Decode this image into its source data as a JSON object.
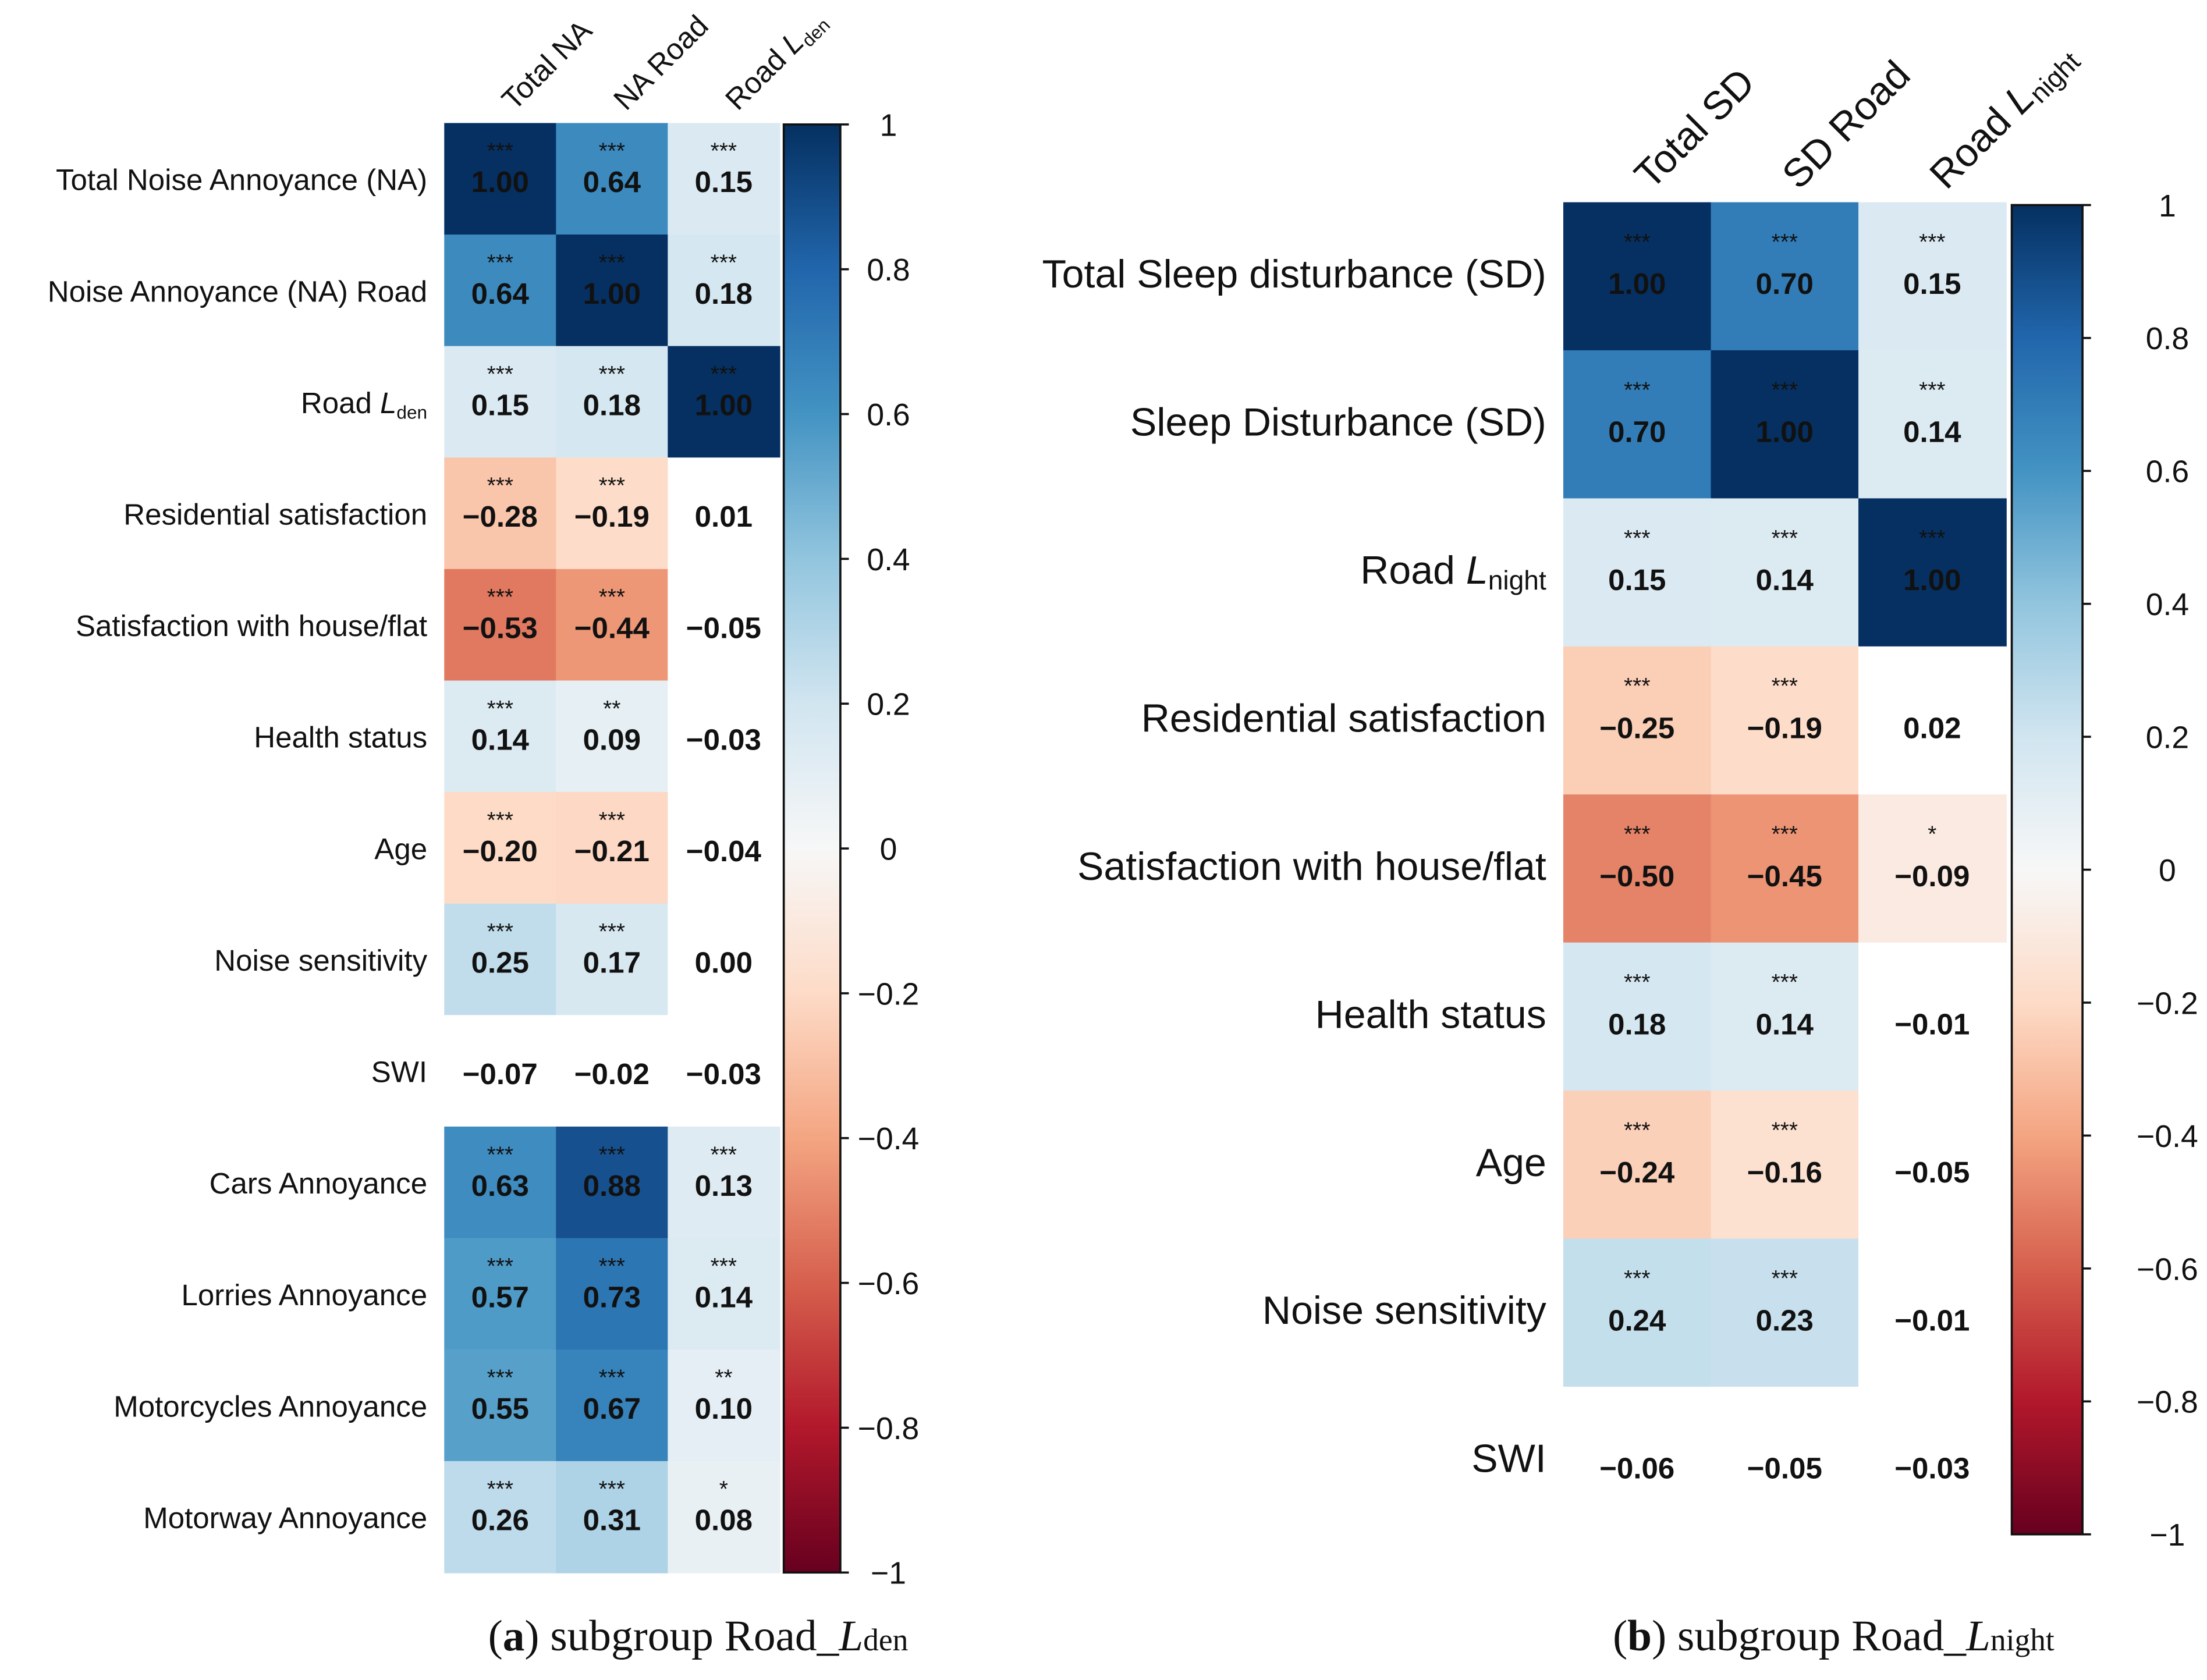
{
  "chart_data": [
    {
      "type": "heatmap",
      "caption": {
        "label": "a",
        "text": " subgroup Road_",
        "italic": "L",
        "sub": "den"
      },
      "columns": [
        {
          "text": "Total NA"
        },
        {
          "text": "NA Road"
        },
        {
          "text": "Road ",
          "italic": "L",
          "sub": "den"
        }
      ],
      "rows": [
        {
          "label": {
            "text": "Total Noise Annoyance (NA)"
          },
          "values": [
            1.0,
            0.64,
            0.15
          ],
          "stars": [
            "***",
            "***",
            "***"
          ]
        },
        {
          "label": {
            "text": "Noise Annoyance (NA) Road"
          },
          "values": [
            0.64,
            1.0,
            0.18
          ],
          "stars": [
            "***",
            "***",
            "***"
          ]
        },
        {
          "label": {
            "text": "Road ",
            "italic": "L",
            "sub": "den"
          },
          "values": [
            0.15,
            0.18,
            1.0
          ],
          "stars": [
            "***",
            "***",
            "***"
          ]
        },
        {
          "label": {
            "text": "Residential satisfaction"
          },
          "values": [
            -0.28,
            -0.19,
            0.01
          ],
          "stars": [
            "***",
            "***",
            ""
          ]
        },
        {
          "label": {
            "text": "Satisfaction with house/flat"
          },
          "values": [
            -0.53,
            -0.44,
            -0.05
          ],
          "stars": [
            "***",
            "***",
            ""
          ]
        },
        {
          "label": {
            "text": "Health status"
          },
          "values": [
            0.14,
            0.09,
            -0.03
          ],
          "stars": [
            "***",
            "**",
            ""
          ]
        },
        {
          "label": {
            "text": "Age"
          },
          "values": [
            -0.2,
            -0.21,
            -0.04
          ],
          "stars": [
            "***",
            "***",
            ""
          ]
        },
        {
          "label": {
            "text": "Noise sensitivity"
          },
          "values": [
            0.25,
            0.17,
            0.0
          ],
          "stars": [
            "***",
            "***",
            ""
          ]
        },
        {
          "label": {
            "text": "SWI"
          },
          "values": [
            -0.07,
            -0.02,
            -0.03
          ],
          "stars": [
            "",
            "",
            ""
          ]
        },
        {
          "label": {
            "text": "Cars Annoyance"
          },
          "values": [
            0.63,
            0.88,
            0.13
          ],
          "stars": [
            "***",
            "***",
            "***"
          ]
        },
        {
          "label": {
            "text": "Lorries Annoyance"
          },
          "values": [
            0.57,
            0.73,
            0.14
          ],
          "stars": [
            "***",
            "***",
            "***"
          ]
        },
        {
          "label": {
            "text": "Motorcycles Annoyance"
          },
          "values": [
            0.55,
            0.67,
            0.1
          ],
          "stars": [
            "***",
            "***",
            "**"
          ]
        },
        {
          "label": {
            "text": "Motorway Annoyance"
          },
          "values": [
            0.26,
            0.31,
            0.08
          ],
          "stars": [
            "***",
            "***",
            "*"
          ]
        }
      ],
      "colorbar": {
        "range": [
          -1,
          1
        ],
        "ticks": [
          "1",
          "0.8",
          "0.6",
          "0.4",
          "0.2",
          "0",
          "−0.2",
          "−0.4",
          "−0.6",
          "−0.8",
          "−1"
        ],
        "colormap": "RdBu"
      }
    },
    {
      "type": "heatmap",
      "caption": {
        "label": "b",
        "text": " subgroup Road_",
        "italic": "L",
        "sub": "night"
      },
      "columns": [
        {
          "text": "Total SD"
        },
        {
          "text": "SD Road"
        },
        {
          "text": "Road ",
          "italic": "L",
          "sub": "night"
        }
      ],
      "rows": [
        {
          "label": {
            "text": "Total Sleep disturbance (SD)"
          },
          "values": [
            1.0,
            0.7,
            0.15
          ],
          "stars": [
            "***",
            "***",
            "***"
          ]
        },
        {
          "label": {
            "text": "Sleep Disturbance (SD)"
          },
          "values": [
            0.7,
            1.0,
            0.14
          ],
          "stars": [
            "***",
            "***",
            "***"
          ]
        },
        {
          "label": {
            "text": "Road ",
            "italic": "L",
            "sub": "night"
          },
          "values": [
            0.15,
            0.14,
            1.0
          ],
          "stars": [
            "***",
            "***",
            "***"
          ]
        },
        {
          "label": {
            "text": "Residential satisfaction"
          },
          "values": [
            -0.25,
            -0.19,
            0.02
          ],
          "stars": [
            "***",
            "***",
            ""
          ]
        },
        {
          "label": {
            "text": "Satisfaction with house/flat"
          },
          "values": [
            -0.5,
            -0.45,
            -0.09
          ],
          "stars": [
            "***",
            "***",
            "*"
          ]
        },
        {
          "label": {
            "text": "Health status"
          },
          "values": [
            0.18,
            0.14,
            -0.01
          ],
          "stars": [
            "***",
            "***",
            ""
          ]
        },
        {
          "label": {
            "text": "Age"
          },
          "values": [
            -0.24,
            -0.16,
            -0.05
          ],
          "stars": [
            "***",
            "***",
            ""
          ]
        },
        {
          "label": {
            "text": "Noise sensitivity"
          },
          "values": [
            0.24,
            0.23,
            -0.01
          ],
          "stars": [
            "***",
            "***",
            ""
          ]
        },
        {
          "label": {
            "text": "SWI"
          },
          "values": [
            -0.06,
            -0.05,
            -0.03
          ],
          "stars": [
            "",
            "",
            ""
          ]
        }
      ],
      "colorbar": {
        "range": [
          -1,
          1
        ],
        "ticks": [
          "1",
          "0.8",
          "0.6",
          "0.4",
          "0.2",
          "0",
          "−0.2",
          "−0.4",
          "−0.6",
          "−0.8",
          "−1"
        ],
        "colormap": "RdBu"
      }
    }
  ]
}
